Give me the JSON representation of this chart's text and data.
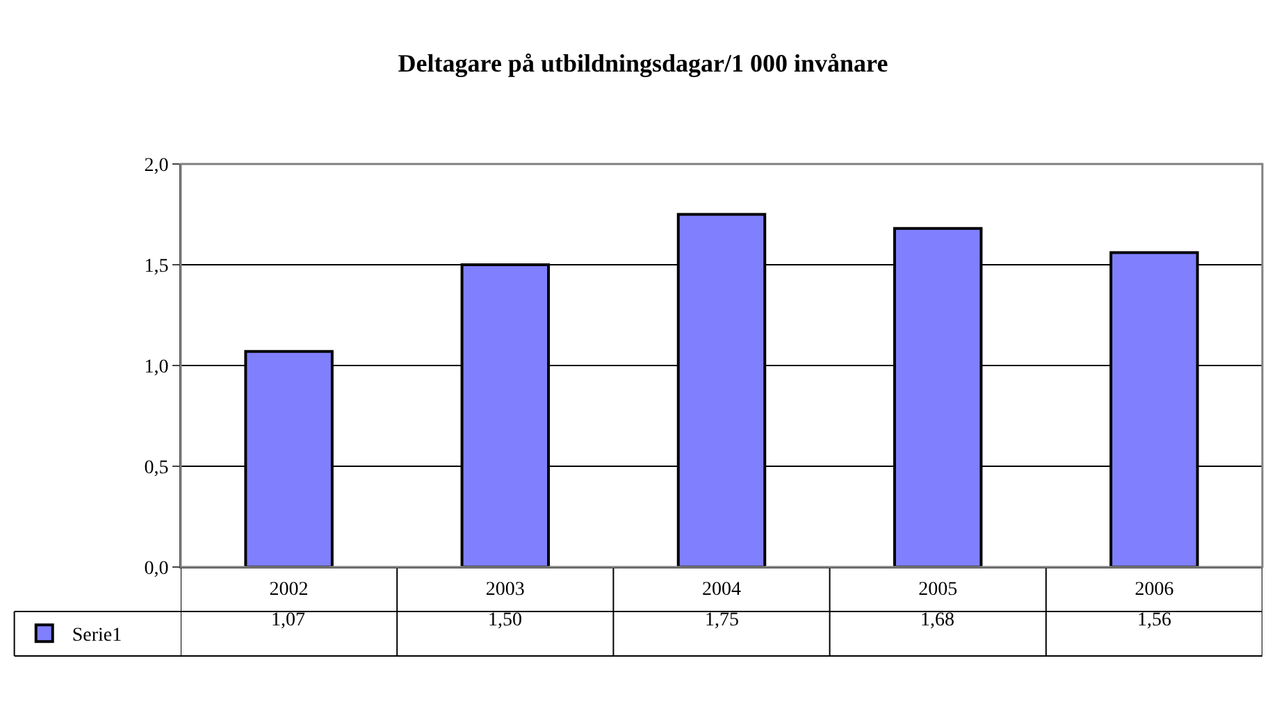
{
  "chart_data": {
    "type": "bar",
    "title": "Deltagare på utbildningsdagar/1 000 invånare",
    "categories": [
      "2002",
      "2003",
      "2004",
      "2005",
      "2006"
    ],
    "series": [
      {
        "name": "Serie1",
        "color": "#8080ff",
        "values": [
          1.07,
          1.5,
          1.75,
          1.68,
          1.56
        ],
        "value_labels": [
          "1,07",
          "1,50",
          "1,75",
          "1,68",
          "1,56"
        ]
      }
    ],
    "ylim": [
      0,
      2
    ],
    "yticks": [
      {
        "value": 0,
        "label": "0,0"
      },
      {
        "value": 0.5,
        "label": "0,5"
      },
      {
        "value": 1,
        "label": "1,0"
      },
      {
        "value": 1.5,
        "label": "1,5"
      },
      {
        "value": 2,
        "label": "2,0"
      }
    ],
    "grid": "y",
    "legend": "bottom"
  }
}
